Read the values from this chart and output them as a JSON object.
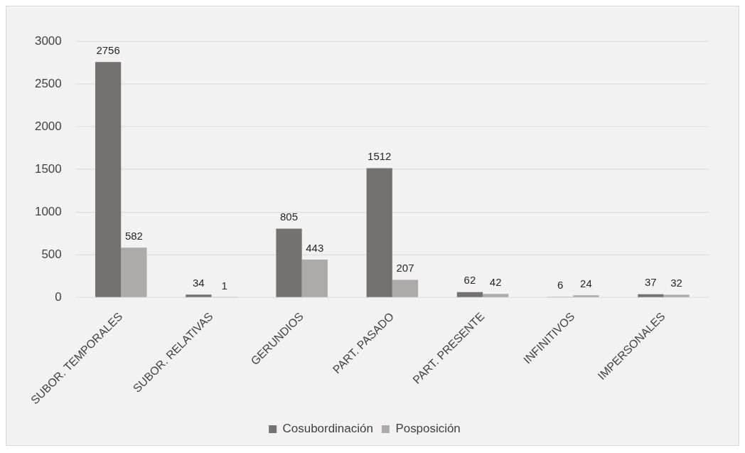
{
  "chart_data": {
    "type": "bar",
    "categories": [
      "SUBOR. TEMPORALES",
      "SUBOR. RELATIVAS",
      "GERUNDIOS",
      "PART. PASADO",
      "PART. PRESENTE",
      "INFINITIVOS",
      "IMPERSONALES"
    ],
    "series": [
      {
        "name": "Cosubordinación",
        "color": "#757171",
        "values": [
          2756,
          34,
          805,
          1512,
          62,
          6,
          37
        ]
      },
      {
        "name": "Posposición",
        "color": "#aeaaaa",
        "values": [
          582,
          1,
          443,
          207,
          42,
          24,
          32
        ]
      }
    ],
    "ylim": [
      0,
      3000
    ],
    "yticks": [
      0,
      500,
      1000,
      1500,
      2000,
      2500,
      3000
    ],
    "grid": "y",
    "legend": "bottom",
    "data_labels": true
  }
}
